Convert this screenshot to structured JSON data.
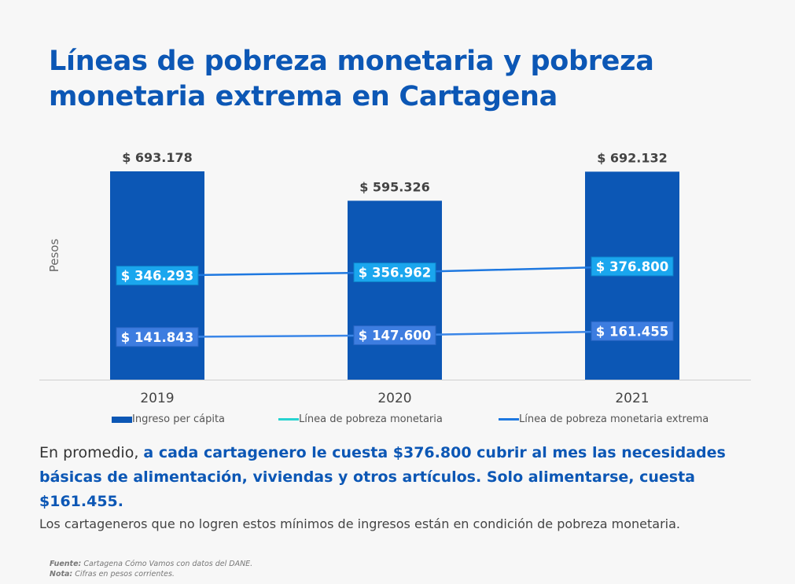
{
  "title": {
    "line1": "Líneas de pobreza monetaria y pobreza",
    "line2": "monetaria extrema en Cartagena"
  },
  "chart_data": {
    "type": "bar",
    "categories": [
      "2019",
      "2020",
      "2021"
    ],
    "ylabel": "Pesos",
    "ylim": [
      0,
      700000
    ],
    "grid": false,
    "legend_position": "bottom",
    "series": [
      {
        "name": "Ingreso per cápita",
        "kind": "bar",
        "color": "#0c57b5",
        "values": [
          693178,
          595326,
          692132
        ],
        "labels": [
          "$ 693.178",
          "$ 595.326",
          "$ 692.132"
        ]
      },
      {
        "name": "Línea de pobreza monetaria",
        "kind": "line",
        "color": "#27d3d0",
        "values": [
          346293,
          356962,
          376800
        ],
        "labels": [
          "$ 346.293",
          "$ 356.962",
          "$ 376.800"
        ]
      },
      {
        "name": "Línea de pobreza monetaria extrema",
        "kind": "line",
        "color": "#1e78e0",
        "values": [
          141843,
          147600,
          161455
        ],
        "labels": [
          "$ 141.843",
          "$ 147.600",
          "$ 161.455"
        ]
      }
    ]
  },
  "summary": {
    "intro": "En promedio, ",
    "highlight": "a cada cartagenero le cuesta $376.800 cubrir al mes las necesidades básicas de alimentación, viviendas y otros artículos. Solo alimentarse, cuesta $161.455."
  },
  "note": "Los cartageneros que no logren estos mínimos de ingresos están en condición de pobreza monetaria.",
  "source": {
    "fuente_label": "Fuente:",
    "fuente_text": " Cartagena Cómo Vamos con datos del DANE.",
    "nota_label": "Nota:",
    "nota_text": " Cifras en pesos corrientes."
  }
}
